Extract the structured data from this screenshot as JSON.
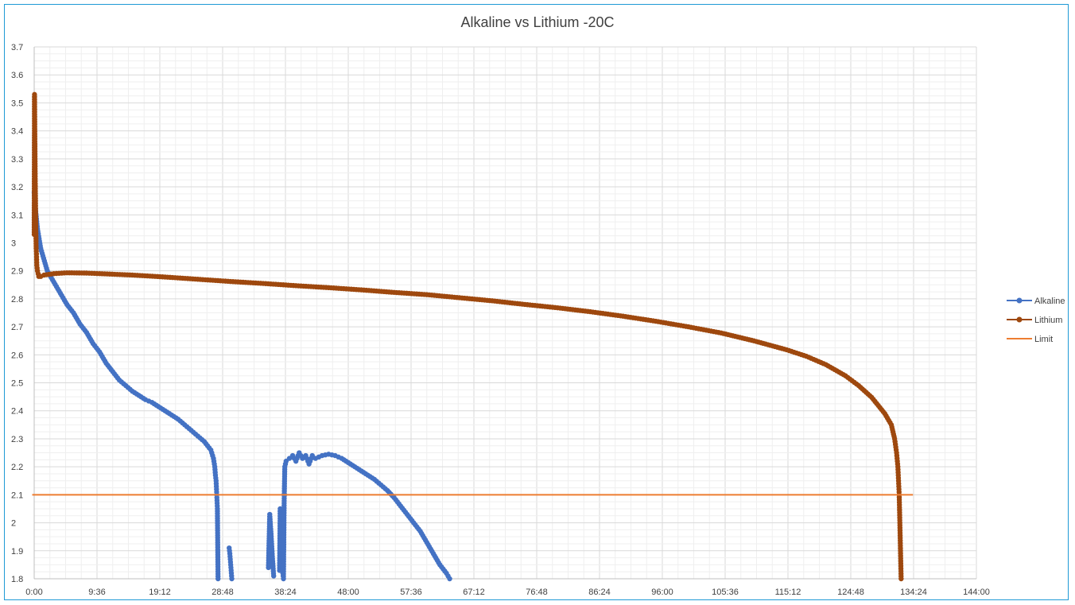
{
  "chart_data": {
    "type": "scatter",
    "title": "Alkaline vs Lithium -20C",
    "xlabel": "",
    "ylabel": "",
    "x_unit": "hours:minutes",
    "xlim": [
      0,
      144
    ],
    "ylim": [
      1.8,
      3.7
    ],
    "y_ticks": [
      "1.8",
      "1.9",
      "2",
      "2.1",
      "2.2",
      "2.3",
      "2.4",
      "2.5",
      "2.6",
      "2.7",
      "2.8",
      "2.9",
      "3",
      "3.1",
      "3.2",
      "3.3",
      "3.4",
      "3.5",
      "3.6",
      "3.7"
    ],
    "x_ticks": [
      "0:00",
      "9:36",
      "19:12",
      "28:48",
      "38:24",
      "48:00",
      "57:36",
      "67:12",
      "76:48",
      "86:24",
      "96:00",
      "105:36",
      "115:12",
      "124:48",
      "134:24",
      "144:00"
    ],
    "grid": true,
    "legend_position": "right",
    "series": [
      {
        "name": "Alkaline",
        "color": "#4472c4",
        "style": "line-markers",
        "segments": [
          [
            [
              0,
              3.18
            ],
            [
              0.2,
              3.12
            ],
            [
              0.5,
              3.05
            ],
            [
              1.0,
              2.98
            ],
            [
              2,
              2.9
            ],
            [
              3,
              2.86
            ],
            [
              4,
              2.82
            ],
            [
              5,
              2.78
            ],
            [
              6,
              2.75
            ],
            [
              7,
              2.71
            ],
            [
              8,
              2.68
            ],
            [
              9,
              2.64
            ],
            [
              10,
              2.61
            ],
            [
              11,
              2.57
            ],
            [
              12,
              2.54
            ],
            [
              13,
              2.51
            ],
            [
              14,
              2.49
            ],
            [
              15,
              2.47
            ],
            [
              16,
              2.455
            ],
            [
              17,
              2.44
            ],
            [
              18,
              2.43
            ],
            [
              19,
              2.415
            ],
            [
              20,
              2.4
            ],
            [
              21,
              2.385
            ],
            [
              22,
              2.37
            ],
            [
              23,
              2.35
            ],
            [
              24,
              2.33
            ],
            [
              25,
              2.31
            ],
            [
              26,
              2.29
            ],
            [
              27,
              2.26
            ],
            [
              27.4,
              2.23
            ],
            [
              27.6,
              2.2
            ],
            [
              27.7,
              2.17
            ],
            [
              27.8,
              2.15
            ],
            [
              27.9,
              2.1
            ],
            [
              28.0,
              2.05
            ],
            [
              28.1,
              1.8
            ]
          ],
          [
            [
              29.8,
              1.91
            ],
            [
              29.9,
              1.89
            ],
            [
              30.0,
              1.86
            ],
            [
              30.1,
              1.83
            ],
            [
              30.2,
              1.8
            ]
          ],
          [
            [
              35.8,
              1.84
            ],
            [
              36.0,
              2.03
            ],
            [
              36.2,
              1.96
            ],
            [
              36.4,
              1.88
            ],
            [
              36.6,
              1.81
            ]
          ],
          [
            [
              37.5,
              1.83
            ],
            [
              37.6,
              2.05
            ],
            [
              37.7,
              1.87
            ],
            [
              37.8,
              2.01
            ],
            [
              37.9,
              1.92
            ],
            [
              38.0,
              1.82
            ],
            [
              38.1,
              1.8
            ],
            [
              38.2,
              2.07
            ],
            [
              38.3,
              2.2
            ],
            [
              38.5,
              2.22
            ],
            [
              39,
              2.23
            ],
            [
              39.5,
              2.24
            ],
            [
              40,
              2.22
            ],
            [
              40.5,
              2.25
            ],
            [
              41,
              2.23
            ],
            [
              41.5,
              2.24
            ],
            [
              42,
              2.21
            ],
            [
              42.5,
              2.24
            ],
            [
              43,
              2.23
            ],
            [
              44,
              2.24
            ],
            [
              45,
              2.245
            ],
            [
              46,
              2.24
            ],
            [
              47,
              2.23
            ],
            [
              48,
              2.215
            ],
            [
              49,
              2.2
            ],
            [
              50,
              2.185
            ],
            [
              51,
              2.17
            ],
            [
              52,
              2.155
            ],
            [
              53,
              2.135
            ],
            [
              54,
              2.115
            ],
            [
              55,
              2.09
            ],
            [
              56,
              2.06
            ],
            [
              57,
              2.03
            ],
            [
              58,
              2.0
            ],
            [
              59,
              1.97
            ],
            [
              60,
              1.93
            ],
            [
              61,
              1.89
            ],
            [
              62,
              1.85
            ],
            [
              63,
              1.82
            ],
            [
              63.5,
              1.8
            ]
          ]
        ]
      },
      {
        "name": "Lithium",
        "color": "#9e480e",
        "style": "line-markers",
        "points": [
          [
            0,
            3.03
          ],
          [
            0.05,
            3.53
          ],
          [
            0.08,
            3.45
          ],
          [
            0.1,
            3.38
          ],
          [
            0.13,
            3.3
          ],
          [
            0.16,
            3.22
          ],
          [
            0.2,
            3.15
          ],
          [
            0.25,
            3.05
          ],
          [
            0.3,
            2.98
          ],
          [
            0.35,
            2.96
          ],
          [
            0.4,
            2.92
          ],
          [
            0.5,
            2.9
          ],
          [
            0.7,
            2.88
          ],
          [
            1,
            2.88
          ],
          [
            1.5,
            2.885
          ],
          [
            3,
            2.89
          ],
          [
            5,
            2.893
          ],
          [
            8,
            2.892
          ],
          [
            10,
            2.89
          ],
          [
            15,
            2.885
          ],
          [
            20,
            2.878
          ],
          [
            25,
            2.87
          ],
          [
            30,
            2.862
          ],
          [
            35,
            2.855
          ],
          [
            40,
            2.847
          ],
          [
            45,
            2.84
          ],
          [
            50,
            2.832
          ],
          [
            55,
            2.823
          ],
          [
            60,
            2.815
          ],
          [
            65,
            2.804
          ],
          [
            70,
            2.793
          ],
          [
            75,
            2.78
          ],
          [
            80,
            2.768
          ],
          [
            85,
            2.754
          ],
          [
            90,
            2.738
          ],
          [
            95,
            2.72
          ],
          [
            100,
            2.7
          ],
          [
            105,
            2.678
          ],
          [
            110,
            2.65
          ],
          [
            115,
            2.618
          ],
          [
            118,
            2.595
          ],
          [
            121,
            2.565
          ],
          [
            124,
            2.525
          ],
          [
            126,
            2.49
          ],
          [
            128,
            2.448
          ],
          [
            130,
            2.39
          ],
          [
            131,
            2.35
          ],
          [
            131.5,
            2.3
          ],
          [
            131.8,
            2.25
          ],
          [
            132,
            2.2
          ],
          [
            132.1,
            2.15
          ],
          [
            132.2,
            2.1
          ],
          [
            132.3,
            2.0
          ],
          [
            132.4,
            1.9
          ],
          [
            132.5,
            1.8
          ]
        ]
      },
      {
        "name": "Limit",
        "color": "#ed7d31",
        "style": "line",
        "points": [
          [
            -0.3,
            2.1
          ],
          [
            134.3,
            2.1
          ]
        ]
      }
    ]
  }
}
